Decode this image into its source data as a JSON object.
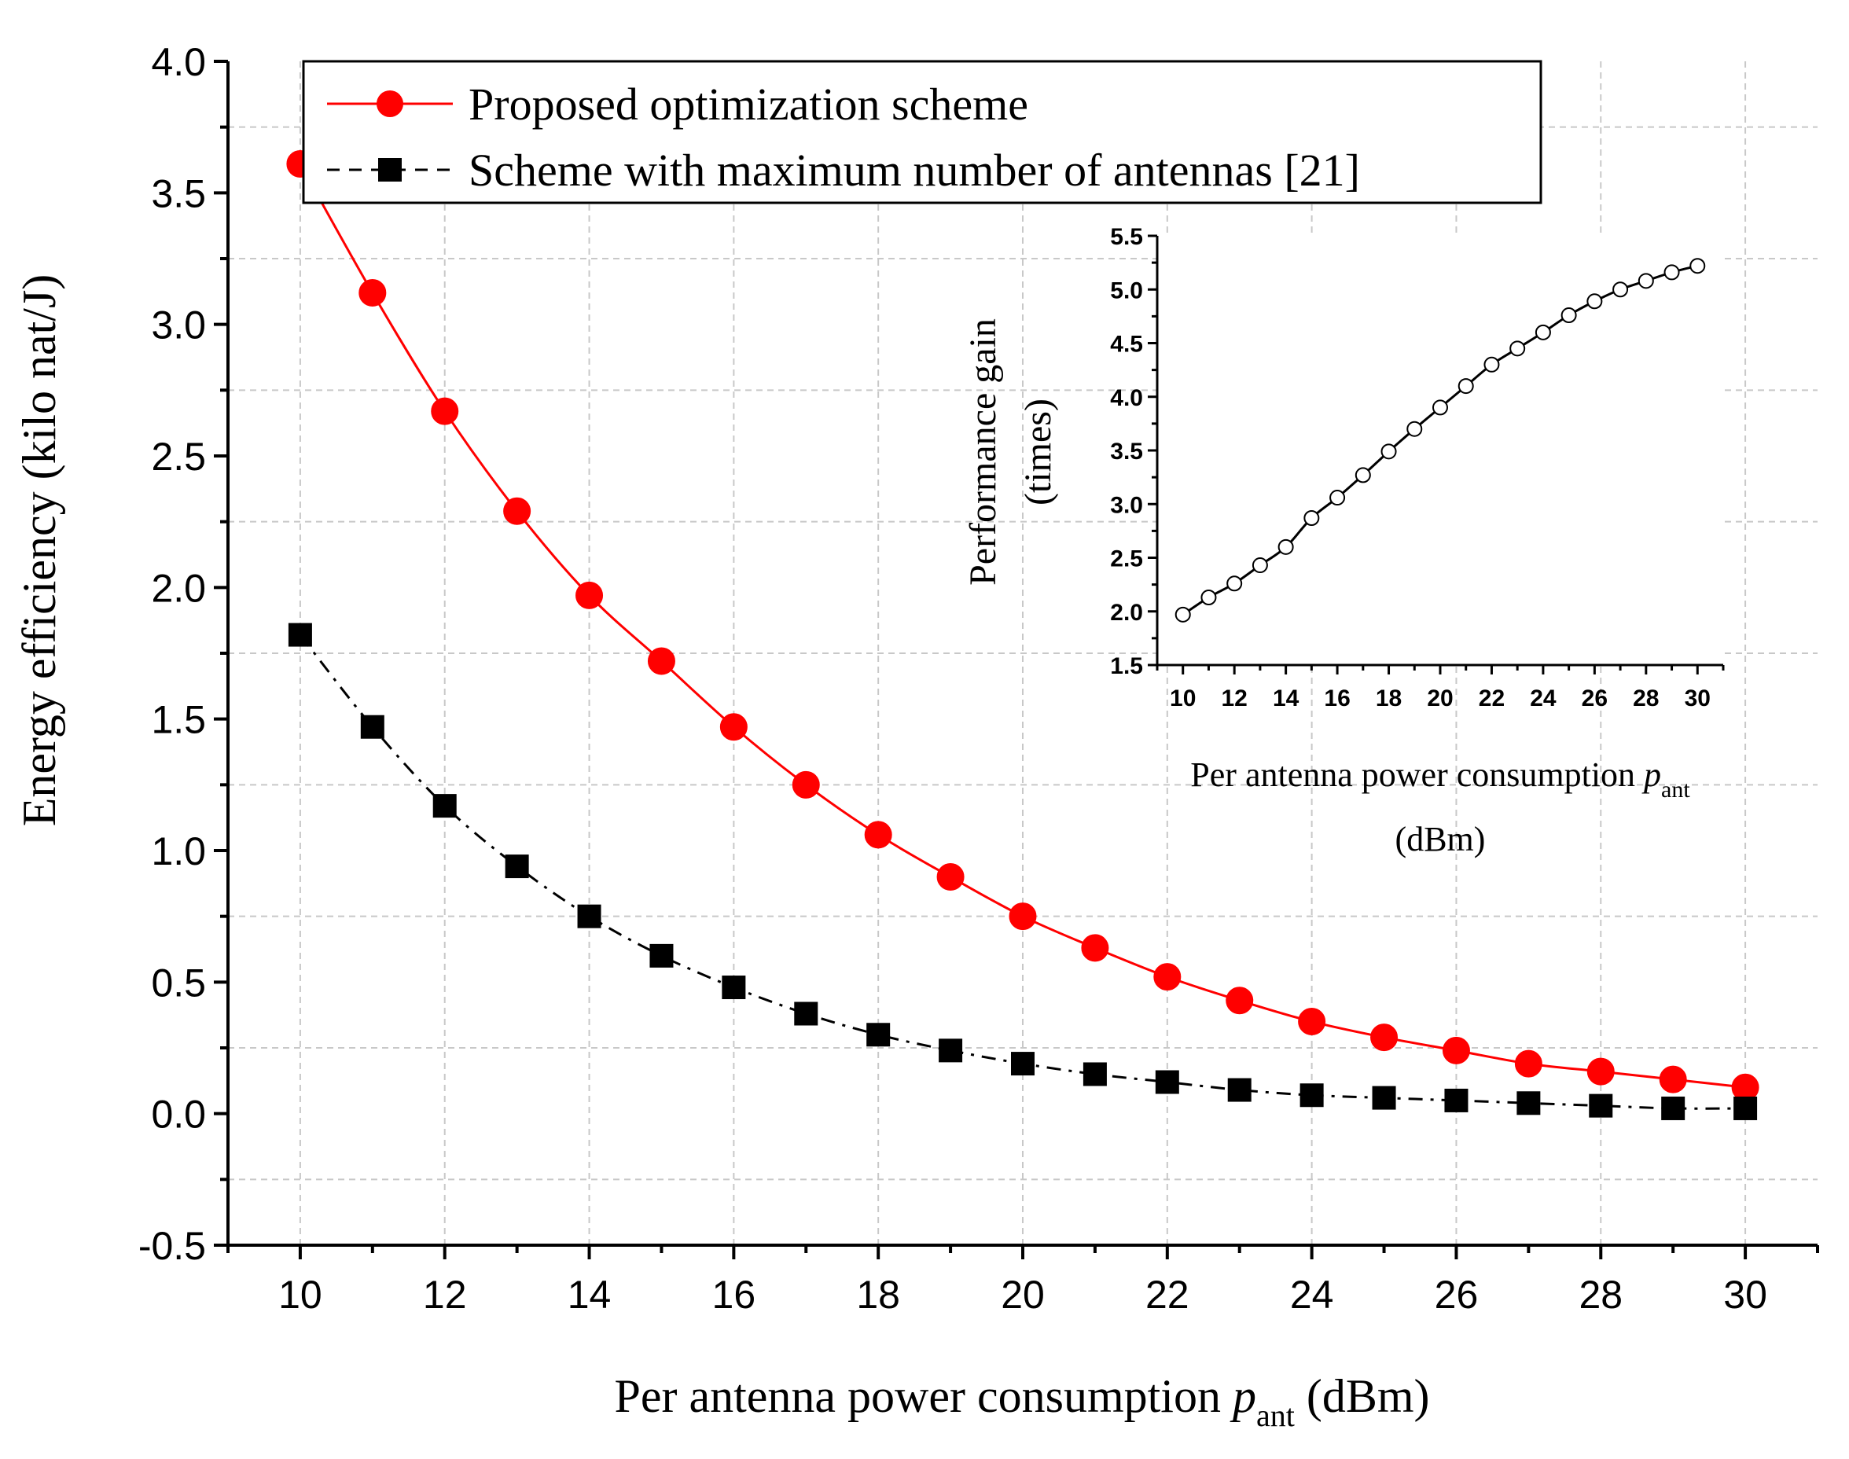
{
  "chart_data": [
    {
      "type": "line",
      "role": "main",
      "title": "",
      "xlabel": {
        "prefix": "Per antenna power consumption ",
        "var": "p",
        "sub": "ant",
        "suffix": " (dBm)"
      },
      "ylabel": "Energy efficiency (kilo nat/J)",
      "xlim": [
        9,
        31
      ],
      "ylim": [
        -0.5,
        4.0
      ],
      "xticks": [
        10,
        12,
        14,
        16,
        18,
        20,
        22,
        24,
        26,
        28,
        30
      ],
      "xtick_labels": [
        "10",
        "12",
        "14",
        "16",
        "18",
        "20",
        "22",
        "24",
        "26",
        "28",
        "30"
      ],
      "yticks": [
        -0.5,
        0.0,
        0.5,
        1.0,
        1.5,
        2.0,
        2.5,
        3.0,
        3.5,
        4.0
      ],
      "ytick_labels": [
        "-0.5",
        "0.0",
        "0.5",
        "1.0",
        "1.5",
        "2.0",
        "2.5",
        "3.0",
        "3.5",
        "4.0"
      ],
      "grid": true,
      "legend_position": "top-left",
      "x": [
        10,
        11,
        12,
        13,
        14,
        15,
        16,
        17,
        18,
        19,
        20,
        21,
        22,
        23,
        24,
        25,
        26,
        27,
        28,
        29,
        30
      ],
      "series": [
        {
          "name": "Proposed optimization scheme",
          "color": "#ff0000",
          "marker": "circle",
          "line_style": "solid",
          "values": [
            3.61,
            3.12,
            2.67,
            2.29,
            1.97,
            1.72,
            1.47,
            1.25,
            1.06,
            0.9,
            0.75,
            0.63,
            0.52,
            0.43,
            0.35,
            0.29,
            0.24,
            0.19,
            0.16,
            0.13,
            0.1
          ]
        },
        {
          "name": "Scheme with maximum number of antennas [21]",
          "color": "#000000",
          "marker": "square",
          "line_style": "dash-dot",
          "values": [
            1.82,
            1.47,
            1.17,
            0.94,
            0.75,
            0.6,
            0.48,
            0.38,
            0.3,
            0.24,
            0.19,
            0.15,
            0.12,
            0.09,
            0.07,
            0.06,
            0.05,
            0.04,
            0.03,
            0.02,
            0.02
          ]
        }
      ]
    },
    {
      "type": "line",
      "role": "inset",
      "title": "",
      "xlabel": {
        "prefix": "Per antenna power consumption ",
        "var": "p",
        "sub": "ant",
        "line2": "(dBm)"
      },
      "ylabel": {
        "line1": "Performance gain",
        "line2": "(times)"
      },
      "xlim": [
        9,
        31
      ],
      "ylim": [
        1.5,
        5.5
      ],
      "xticks": [
        10,
        12,
        14,
        16,
        18,
        20,
        22,
        24,
        26,
        28,
        30
      ],
      "xtick_labels": [
        "10",
        "12",
        "14",
        "16",
        "18",
        "20",
        "22",
        "24",
        "26",
        "28",
        "30"
      ],
      "yticks": [
        1.5,
        2.0,
        2.5,
        3.0,
        3.5,
        4.0,
        4.5,
        5.0,
        5.5
      ],
      "ytick_labels": [
        "1.5",
        "2.0",
        "2.5",
        "3.0",
        "3.5",
        "4.0",
        "4.5",
        "5.0",
        "5.5"
      ],
      "grid": false,
      "x": [
        10,
        11,
        12,
        13,
        14,
        15,
        16,
        17,
        18,
        19,
        20,
        21,
        22,
        23,
        24,
        25,
        26,
        27,
        28,
        29,
        30
      ],
      "series": [
        {
          "name": "Performance gain",
          "color": "#000000",
          "marker": "open-circle",
          "line_style": "solid",
          "values": [
            1.97,
            2.13,
            2.26,
            2.43,
            2.6,
            2.87,
            3.06,
            3.27,
            3.49,
            3.7,
            3.9,
            4.1,
            4.3,
            4.45,
            4.6,
            4.76,
            4.89,
            5.0,
            5.08,
            5.16,
            5.22
          ]
        }
      ]
    }
  ]
}
